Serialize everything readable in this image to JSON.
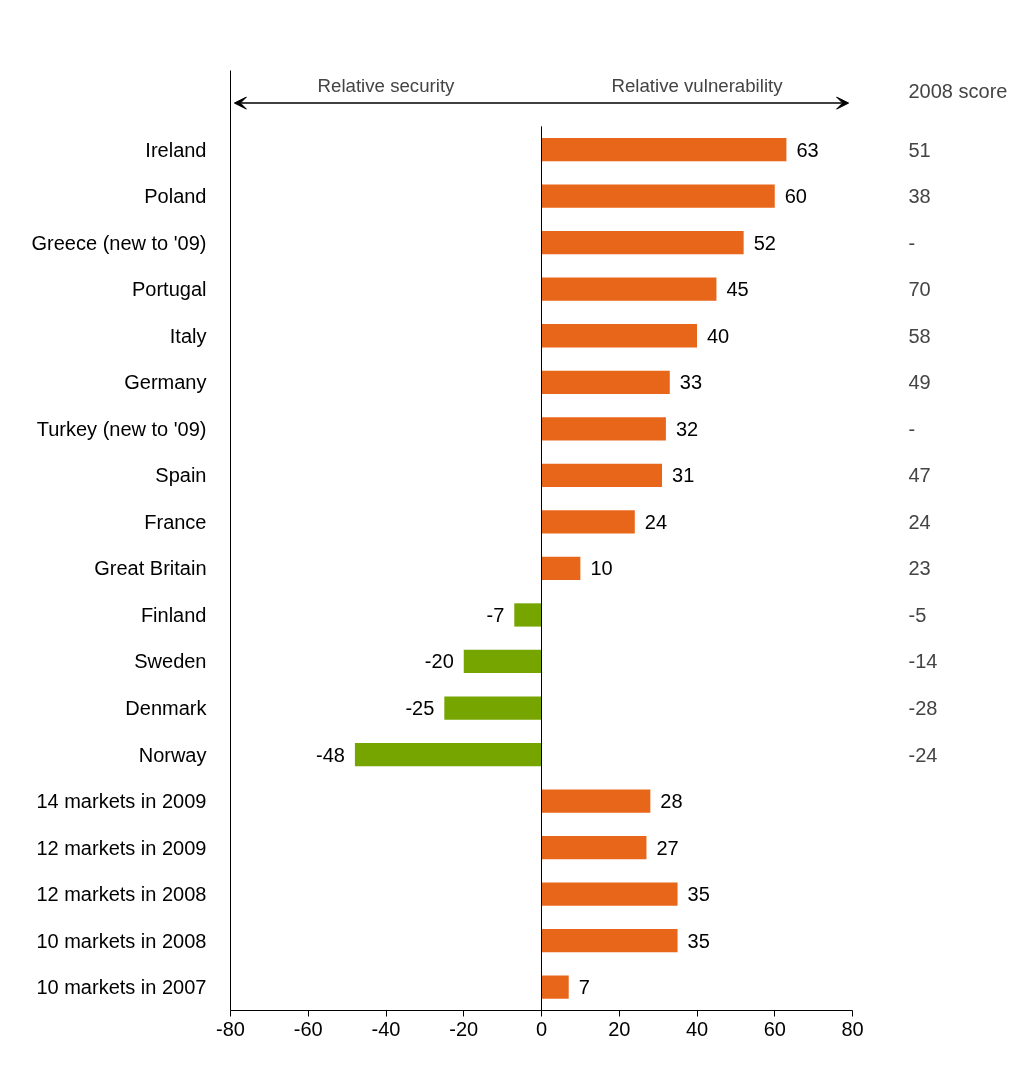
{
  "chart_data": {
    "type": "bar",
    "orientation": "horizontal",
    "categories": [
      "Ireland",
      "Poland",
      "Greece (new to '09)",
      "Portugal",
      "Italy",
      "Germany",
      "Turkey (new to '09)",
      "Spain",
      "France",
      "Great Britain",
      "Finland",
      "Sweden",
      "Denmark",
      "Norway",
      "14 markets in 2009",
      "12 markets in 2009",
      "12 markets in 2008",
      "10 markets in 2008",
      "10 markets in 2007"
    ],
    "values": [
      63,
      60,
      52,
      45,
      40,
      33,
      32,
      31,
      24,
      10,
      -7,
      -20,
      -25,
      -48,
      28,
      27,
      35,
      35,
      7
    ],
    "colors": [
      "#e8661a",
      "#e8661a",
      "#e8661a",
      "#e8661a",
      "#e8661a",
      "#e8661a",
      "#e8661a",
      "#e8661a",
      "#e8661a",
      "#e8661a",
      "#76a500",
      "#76a500",
      "#76a500",
      "#76a500",
      "#e8661a",
      "#e8661a",
      "#e8661a",
      "#e8661a",
      "#e8661a"
    ],
    "data_labels": true,
    "xlim": [
      -80,
      80
    ],
    "xticks": [
      -80,
      -60,
      -40,
      -20,
      0,
      20,
      40,
      60,
      80
    ],
    "ref_lines": [
      {
        "axis": "x",
        "value": 0,
        "color": "#000000"
      }
    ],
    "annotations": [
      "Relative security",
      "Relative vulnerability",
      "2008 score",
      "51",
      "38",
      "-",
      "70",
      "58",
      "49",
      "-",
      "47",
      "24",
      "23",
      "-5",
      "-14",
      "-28",
      "-24"
    ]
  }
}
